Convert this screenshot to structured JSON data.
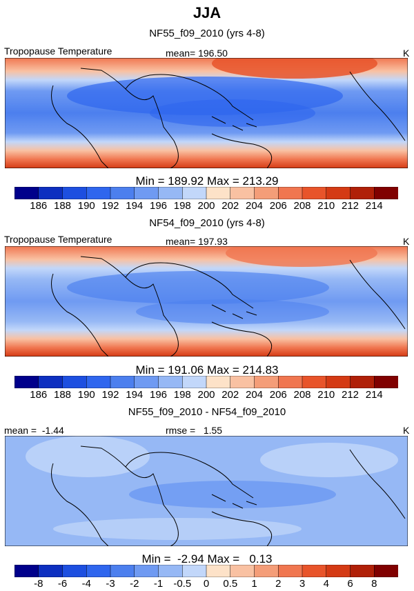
{
  "title": "JJA",
  "panels": [
    {
      "heading": "NF55_f09_2010 (yrs 4-8)",
      "left_label": "Tropopause Temperature",
      "center_label": "mean= 196.50",
      "unit": "K",
      "minmax": "Min = 189.92 Max = 213.29",
      "colorbar": {
        "colors": [
          "#00008b",
          "#0d2fc0",
          "#1d4fe0",
          "#2f66ee",
          "#4c7fee",
          "#6f9af2",
          "#96b8f5",
          "#c2d7fa",
          "#fde2c8",
          "#f9c1a2",
          "#f49d78",
          "#f07650",
          "#e8542a",
          "#d43a14",
          "#b02008",
          "#800000"
        ],
        "ticks": [
          "186",
          "188",
          "190",
          "192",
          "194",
          "196",
          "198",
          "200",
          "202",
          "204",
          "206",
          "208",
          "210",
          "212",
          "214"
        ]
      }
    },
    {
      "heading": "NF54_f09_2010 (yrs 4-8)",
      "left_label": "Tropopause Temperature",
      "center_label": "mean= 197.93",
      "unit": "K",
      "minmax": "Min = 191.06 Max = 214.83",
      "colorbar": {
        "colors": [
          "#00008b",
          "#0d2fc0",
          "#1d4fe0",
          "#2f66ee",
          "#4c7fee",
          "#6f9af2",
          "#96b8f5",
          "#c2d7fa",
          "#fde2c8",
          "#f9c1a2",
          "#f49d78",
          "#f07650",
          "#e8542a",
          "#d43a14",
          "#b02008",
          "#800000"
        ],
        "ticks": [
          "186",
          "188",
          "190",
          "192",
          "194",
          "196",
          "198",
          "200",
          "202",
          "204",
          "206",
          "208",
          "210",
          "212",
          "214"
        ]
      }
    },
    {
      "heading": "NF55_f09_2010 - NF54_f09_2010",
      "left_label": "mean =  -1.44",
      "center_label": "rmse =   1.55",
      "unit": "K",
      "minmax": "Min =  -2.94 Max =   0.13",
      "colorbar": {
        "colors": [
          "#00008b",
          "#0d2fc0",
          "#1d4fe0",
          "#2f66ee",
          "#4c7fee",
          "#6f9af2",
          "#96b8f5",
          "#c2d7fa",
          "#fde2c8",
          "#f9c1a2",
          "#f49d78",
          "#f07650",
          "#e8542a",
          "#d43a14",
          "#b02008",
          "#800000"
        ],
        "ticks": [
          "-8",
          "-6",
          "-4",
          "-3",
          "-2",
          "-1",
          "-0.5",
          "0",
          "0.5",
          "1",
          "2",
          "3",
          "4",
          "6",
          "8"
        ]
      }
    }
  ]
}
